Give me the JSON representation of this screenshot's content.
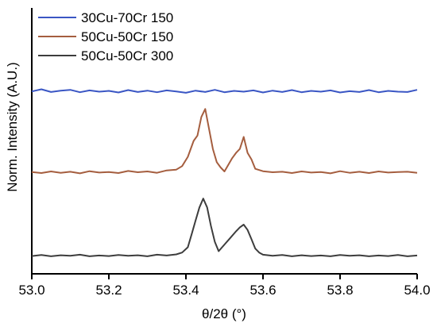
{
  "chart_data": {
    "type": "line",
    "xlabel": "θ/2θ (°)",
    "ylabel": "Norm. Intensity (A.U.)",
    "xlim": [
      53.0,
      54.0
    ],
    "ylim": [
      0.0,
      1.0
    ],
    "x_ticks": [
      "53.0",
      "53.2",
      "53.4",
      "53.6",
      "53.8",
      "54.0"
    ],
    "y_ticks_shown": false,
    "grid": false,
    "legend_position": "top-left",
    "series": [
      {
        "name": "30Cu-70Cr 150",
        "color": "#3a56c4",
        "x": [
          53.0,
          53.025,
          53.05,
          53.075,
          53.1,
          53.125,
          53.15,
          53.175,
          53.2,
          53.225,
          53.25,
          53.275,
          53.3,
          53.325,
          53.35,
          53.375,
          53.4,
          53.425,
          53.45,
          53.475,
          53.5,
          53.525,
          53.55,
          53.575,
          53.6,
          53.625,
          53.65,
          53.675,
          53.7,
          53.725,
          53.75,
          53.775,
          53.8,
          53.825,
          53.85,
          53.875,
          53.9,
          53.925,
          53.95,
          53.975,
          54.0
        ],
        "y": [
          0.686,
          0.694,
          0.684,
          0.689,
          0.692,
          0.683,
          0.69,
          0.685,
          0.688,
          0.682,
          0.691,
          0.684,
          0.689,
          0.683,
          0.69,
          0.686,
          0.681,
          0.689,
          0.684,
          0.692,
          0.683,
          0.688,
          0.685,
          0.69,
          0.682,
          0.689,
          0.684,
          0.691,
          0.683,
          0.688,
          0.685,
          0.69,
          0.682,
          0.687,
          0.684,
          0.691,
          0.683,
          0.688,
          0.685,
          0.684,
          0.692
        ]
      },
      {
        "name": "50Cu-50Cr 150",
        "color": "#a55e3f",
        "x": [
          53.0,
          53.025,
          53.05,
          53.075,
          53.1,
          53.125,
          53.15,
          53.175,
          53.2,
          53.225,
          53.25,
          53.275,
          53.3,
          53.325,
          53.35,
          53.375,
          53.39,
          53.405,
          53.42,
          53.43,
          53.44,
          53.45,
          53.46,
          53.47,
          53.48,
          53.49,
          53.5,
          53.51,
          53.52,
          53.53,
          53.54,
          53.55,
          53.56,
          53.57,
          53.58,
          53.6,
          53.625,
          53.65,
          53.675,
          53.7,
          53.725,
          53.75,
          53.775,
          53.8,
          53.825,
          53.85,
          53.875,
          53.9,
          53.925,
          53.95,
          53.975,
          54.0
        ],
        "y": [
          0.383,
          0.379,
          0.385,
          0.38,
          0.384,
          0.378,
          0.386,
          0.381,
          0.383,
          0.379,
          0.387,
          0.382,
          0.385,
          0.38,
          0.389,
          0.392,
          0.405,
          0.44,
          0.5,
          0.52,
          0.59,
          0.62,
          0.545,
          0.47,
          0.42,
          0.4,
          0.385,
          0.41,
          0.435,
          0.455,
          0.47,
          0.515,
          0.455,
          0.43,
          0.395,
          0.386,
          0.382,
          0.384,
          0.379,
          0.385,
          0.381,
          0.383,
          0.378,
          0.386,
          0.38,
          0.384,
          0.379,
          0.385,
          0.381,
          0.383,
          0.384,
          0.38
        ]
      },
      {
        "name": "50Cu-50Cr 300",
        "color": "#3d3d3d",
        "x": [
          53.0,
          53.025,
          53.05,
          53.075,
          53.1,
          53.125,
          53.15,
          53.175,
          53.2,
          53.225,
          53.25,
          53.275,
          53.3,
          53.325,
          53.35,
          53.375,
          53.39,
          53.405,
          53.415,
          53.425,
          53.435,
          53.445,
          53.455,
          53.465,
          53.475,
          53.485,
          53.5,
          53.515,
          53.53,
          53.54,
          53.55,
          53.56,
          53.57,
          53.58,
          53.59,
          53.6,
          53.625,
          53.65,
          53.675,
          53.7,
          53.725,
          53.75,
          53.775,
          53.8,
          53.825,
          53.85,
          53.875,
          53.9,
          53.925,
          53.95,
          53.975,
          54.0
        ],
        "y": [
          0.067,
          0.071,
          0.066,
          0.07,
          0.068,
          0.072,
          0.066,
          0.069,
          0.067,
          0.071,
          0.068,
          0.07,
          0.066,
          0.072,
          0.069,
          0.073,
          0.08,
          0.1,
          0.15,
          0.2,
          0.25,
          0.283,
          0.25,
          0.18,
          0.12,
          0.085,
          0.11,
          0.135,
          0.16,
          0.175,
          0.185,
          0.165,
          0.13,
          0.095,
          0.08,
          0.072,
          0.068,
          0.071,
          0.066,
          0.07,
          0.067,
          0.069,
          0.066,
          0.071,
          0.068,
          0.07,
          0.066,
          0.069,
          0.067,
          0.071,
          0.066,
          0.069
        ]
      }
    ]
  }
}
